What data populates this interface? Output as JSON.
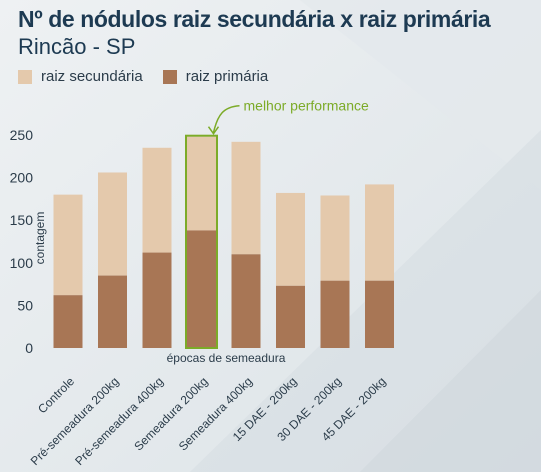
{
  "page": {
    "title": "Nº de nódulos raiz secundária x raiz primária",
    "subtitle": "Rincão - SP"
  },
  "legend": {
    "secondary_label": "raiz secundária",
    "primary_label": "raiz primária"
  },
  "colors": {
    "secondary": "#e4c9ac",
    "primary": "#a87655",
    "highlight": "#7cab28",
    "title": "#1d3a52",
    "text": "#2b3c4a"
  },
  "chart_data": {
    "type": "bar",
    "stacked": true,
    "title": "Nº de nódulos raiz secundária x raiz primária",
    "subtitle": "Rincão - SP",
    "xlabel": "épocas de semeadura",
    "ylabel": "contagem",
    "ylim": [
      0,
      250
    ],
    "yticks": [
      0,
      50,
      100,
      150,
      200,
      250
    ],
    "grid": false,
    "legend_position": "top-left",
    "categories": [
      "Controle",
      "Pré-semeadura 200kg",
      "Pré-semeadura 400kg",
      "Semeadura 200kg",
      "Semeadura 400kg",
      "15 DAE - 200kg",
      "30 DAE - 200kg",
      "45 DAE - 200kg"
    ],
    "series": [
      {
        "name": "raiz primária",
        "values": [
          62,
          85,
          112,
          138,
          110,
          73,
          79,
          79
        ]
      },
      {
        "name": "raiz secundária",
        "values": [
          118,
          121,
          123,
          110,
          132,
          109,
          100,
          113
        ]
      }
    ],
    "totals": [
      180,
      206,
      235,
      248,
      242,
      182,
      179,
      192
    ],
    "annotation": {
      "text": "melhor performance",
      "category_index": 3
    }
  }
}
